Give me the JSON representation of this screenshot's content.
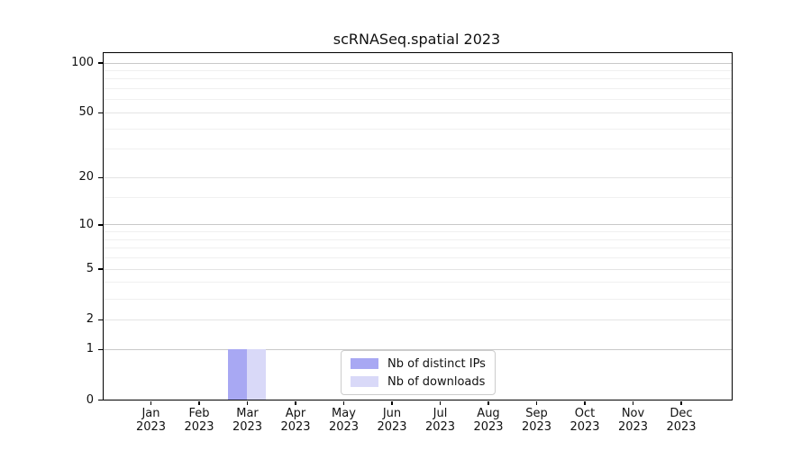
{
  "chart_data": {
    "type": "bar",
    "title": "scRNASeq.spatial 2023",
    "categories": [
      "Jan 2023",
      "Feb 2023",
      "Mar 2023",
      "Apr 2023",
      "May 2023",
      "Jun 2023",
      "Jul 2023",
      "Aug 2023",
      "Sep 2023",
      "Oct 2023",
      "Nov 2023",
      "Dec 2023"
    ],
    "series": [
      {
        "name": "Nb of distinct IPs",
        "color": "#a8a8f3",
        "values": [
          0,
          0,
          1,
          0,
          0,
          0,
          0,
          0,
          0,
          0,
          0,
          0
        ]
      },
      {
        "name": "Nb of downloads",
        "color": "#d9d9f8",
        "values": [
          0,
          0,
          1,
          0,
          0,
          0,
          0,
          0,
          0,
          0,
          0,
          0
        ]
      }
    ],
    "yscale": "log1p",
    "ylim": [
      0,
      114
    ],
    "yticks": [
      0,
      1,
      2,
      5,
      10,
      20,
      50,
      100
    ],
    "yticks_decade": [
      1,
      10,
      100
    ],
    "yticks_minor": [
      3,
      4,
      6,
      7,
      8,
      9,
      15,
      30,
      40,
      60,
      70,
      80,
      90
    ],
    "grid": "horizontal",
    "legend": {
      "position": "lower center",
      "entries": [
        "Nb of distinct IPs",
        "Nb of downloads"
      ]
    }
  }
}
